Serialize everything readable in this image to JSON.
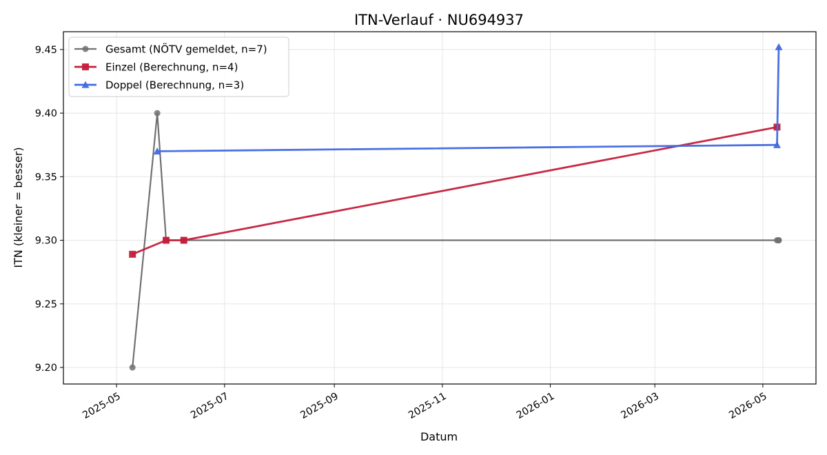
{
  "chart_data": {
    "type": "line",
    "title": "ITN-Verlauf · NU694937",
    "xlabel": "Datum",
    "ylabel": "ITN  (kleiner = besser)",
    "x_ticks": [
      "2025-05",
      "2025-07",
      "2025-09",
      "2025-11",
      "2026-01",
      "2026-03",
      "2026-05"
    ],
    "y_ticks": [
      "9.20",
      "9.25",
      "9.30",
      "9.35",
      "9.40",
      "9.45"
    ],
    "xlim": [
      "2025-04-01",
      "2026-05-31"
    ],
    "ylim": [
      9.187,
      9.464
    ],
    "grid": true,
    "legend_position": "top-left",
    "series": [
      {
        "name": "Gesamt (NÖTV gemeldet, n=7)",
        "color": "#707070",
        "marker": "circle",
        "points": [
          {
            "x": "2025-05-10",
            "y": 9.2
          },
          {
            "x": "2025-05-24",
            "y": 9.4
          },
          {
            "x": "2025-05-29",
            "y": 9.3
          },
          {
            "x": "2025-06-08",
            "y": 9.3
          },
          {
            "x": "2026-05-09",
            "y": 9.3
          },
          {
            "x": "2026-05-10",
            "y": 9.3
          },
          {
            "x": "2026-05-10",
            "y": 9.3
          }
        ]
      },
      {
        "name": "Einzel (Berechnung, n=4)",
        "color": "#c41e3a",
        "marker": "square",
        "points": [
          {
            "x": "2025-05-10",
            "y": 9.289
          },
          {
            "x": "2025-05-29",
            "y": 9.3
          },
          {
            "x": "2025-06-08",
            "y": 9.3
          },
          {
            "x": "2026-05-09",
            "y": 9.389
          }
        ]
      },
      {
        "name": "Doppel (Berechnung, n=3)",
        "color": "#4169e1",
        "marker": "triangle",
        "points": [
          {
            "x": "2025-05-24",
            "y": 9.37
          },
          {
            "x": "2026-05-09",
            "y": 9.375
          },
          {
            "x": "2026-05-10",
            "y": 9.452
          }
        ]
      }
    ]
  }
}
